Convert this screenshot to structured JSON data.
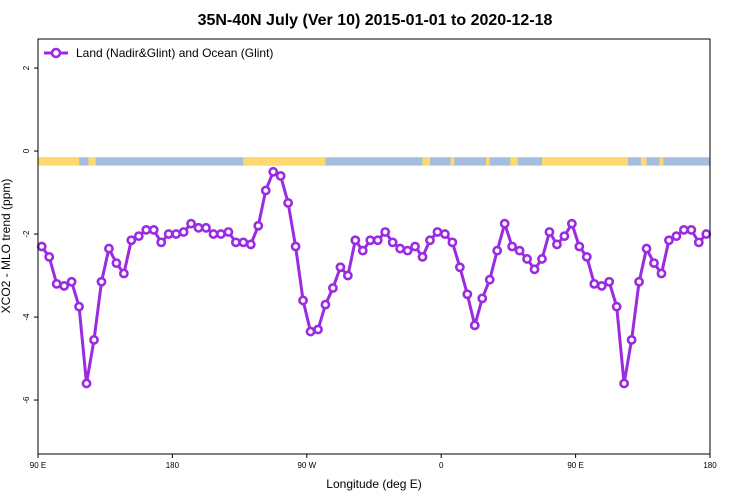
{
  "chart_data": {
    "type": "line",
    "title": "35N-40N July (Ver 10)   2015-01-01 to 2020-12-18",
    "xlabel": "Longitude (deg E)",
    "ylabel": "XCO2 - MLO trend (ppm)",
    "xlim": [
      90,
      450
    ],
    "ylim": [
      -7.3,
      2.7
    ],
    "x_ticks": [
      {
        "value": 90,
        "label": "90 E"
      },
      {
        "value": 162,
        "label": "180"
      },
      {
        "value": 234,
        "label": "90 W"
      },
      {
        "value": 306,
        "label": "0"
      },
      {
        "value": 378,
        "label": "90 E"
      },
      {
        "value": 450,
        "label": "180"
      }
    ],
    "y_ticks": [
      {
        "value": 2,
        "label": "2"
      },
      {
        "value": 0,
        "label": "0"
      },
      {
        "value": -2,
        "label": "-2"
      },
      {
        "value": -4,
        "label": "-4"
      },
      {
        "value": -6,
        "label": "-6"
      }
    ],
    "legend": {
      "placement": "top-left"
    },
    "series": [
      {
        "name": "Land (Nadir&Glint) and Ocean (Glint)",
        "color": "#9b2be0",
        "x": [
          92,
          96,
          100,
          104,
          108,
          112,
          116,
          120,
          124,
          128,
          132,
          136,
          140,
          144,
          148,
          152,
          156,
          160,
          164,
          168,
          172,
          176,
          180,
          184,
          188,
          192,
          196,
          200,
          204,
          208,
          212,
          216,
          220,
          224,
          228,
          232,
          236,
          240,
          244,
          248,
          252,
          256,
          260,
          264,
          268,
          272,
          276,
          280,
          284,
          288,
          292,
          296,
          300,
          304,
          308,
          312,
          316,
          320,
          324,
          328,
          332,
          336,
          340,
          344,
          348,
          352,
          356,
          360,
          364,
          368,
          372,
          376,
          380,
          384,
          388,
          392,
          396,
          400,
          404,
          408,
          412,
          416,
          420,
          424,
          428,
          432,
          436,
          440,
          444,
          448
        ],
        "y": [
          -2.3,
          -2.55,
          -3.2,
          -3.25,
          -3.15,
          -3.75,
          -5.6,
          -4.55,
          -3.15,
          -2.35,
          -2.7,
          -2.95,
          -2.15,
          -2.05,
          -1.9,
          -1.9,
          -2.2,
          -2.0,
          -2.0,
          -1.95,
          -1.75,
          -1.85,
          -1.85,
          -2.0,
          -2.0,
          -1.95,
          -2.2,
          -2.2,
          -2.25,
          -1.8,
          -0.95,
          -0.5,
          -0.6,
          -1.25,
          -2.3,
          -3.6,
          -4.35,
          -4.3,
          -3.7,
          -3.3,
          -2.8,
          -3.0,
          -2.15,
          -2.4,
          -2.15,
          -2.15,
          -1.95,
          -2.2,
          -2.35,
          -2.4,
          -2.3,
          -2.55,
          -2.15,
          -1.95,
          -2.0,
          -2.2,
          -2.8,
          -3.45,
          -4.2,
          -3.55,
          -3.1,
          -2.4,
          -1.75,
          -2.3,
          -2.4,
          -2.6,
          -2.85,
          -2.6,
          -1.95,
          -2.25,
          -2.05,
          -1.75,
          -2.3,
          -2.55,
          -3.2,
          -3.25,
          -3.15,
          -3.75,
          -5.6,
          -4.55,
          -3.15,
          -2.35,
          -2.7,
          -2.95,
          -2.15,
          -2.05,
          -1.9,
          -1.9,
          -2.2,
          -2.0
        ]
      }
    ],
    "surface_band": {
      "y_top": -0.15,
      "y_bottom": -0.35,
      "ocean_color": "#a3bfdf",
      "land_color": "#ffd86e",
      "land_segments": [
        [
          90,
          112
        ],
        [
          117,
          121
        ],
        [
          200,
          244
        ],
        [
          296,
          300
        ],
        [
          311,
          313
        ],
        [
          330,
          332
        ],
        [
          343,
          347
        ],
        [
          360,
          406
        ],
        [
          413,
          416
        ],
        [
          423,
          425
        ]
      ]
    }
  }
}
